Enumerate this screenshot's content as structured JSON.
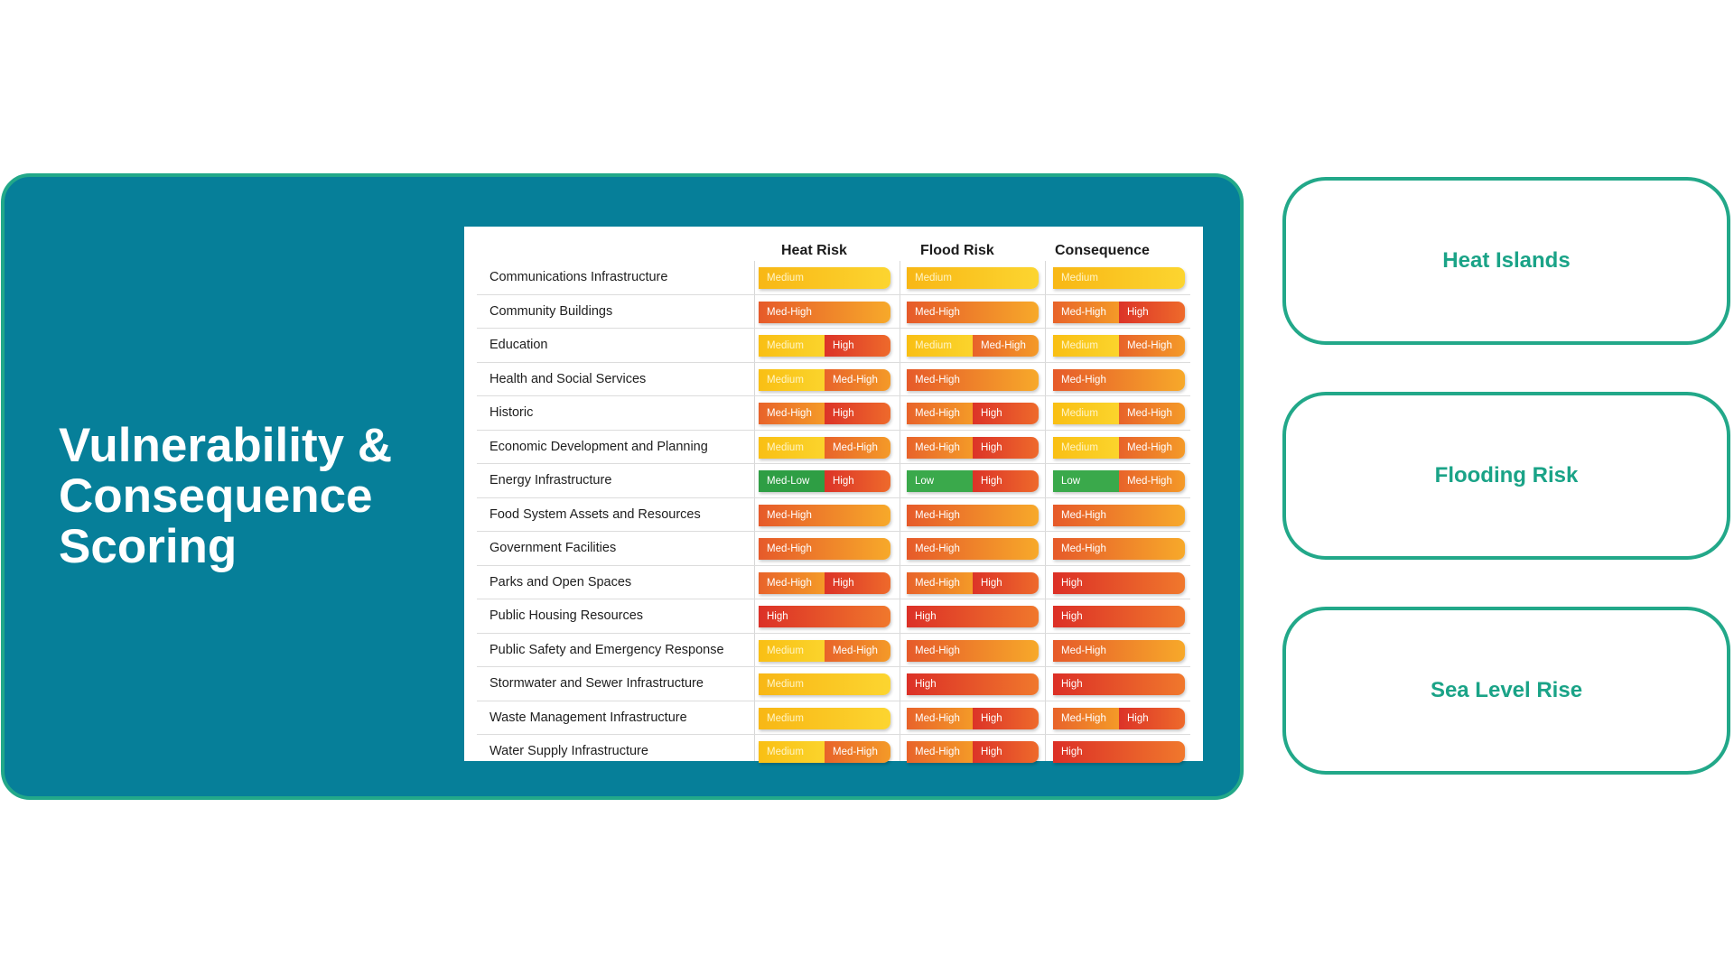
{
  "panel": {
    "title": "Vulnerability & Consequence Scoring"
  },
  "table": {
    "headers": [
      "Heat Risk",
      "Flood Risk",
      "Consequence"
    ],
    "rows": [
      {
        "label": "Communications Infrastructure",
        "cells": [
          [
            "Medium"
          ],
          [
            "Medium"
          ],
          [
            "Medium"
          ]
        ]
      },
      {
        "label": "Community Buildings",
        "cells": [
          [
            "Med-High"
          ],
          [
            "Med-High"
          ],
          [
            "Med-High",
            "High"
          ]
        ]
      },
      {
        "label": "Education",
        "cells": [
          [
            "Medium",
            "High"
          ],
          [
            "Medium",
            "Med-High"
          ],
          [
            "Medium",
            "Med-High"
          ]
        ]
      },
      {
        "label": "Health and Social Services",
        "cells": [
          [
            "Medium",
            "Med-High"
          ],
          [
            "Med-High"
          ],
          [
            "Med-High"
          ]
        ]
      },
      {
        "label": "Historic",
        "cells": [
          [
            "Med-High",
            "High"
          ],
          [
            "Med-High",
            "High"
          ],
          [
            "Medium",
            "Med-High"
          ]
        ]
      },
      {
        "label": "Economic Development and Planning",
        "cells": [
          [
            "Medium",
            "Med-High"
          ],
          [
            "Med-High",
            "High"
          ],
          [
            "Medium",
            "Med-High"
          ]
        ]
      },
      {
        "label": "Energy Infrastructure",
        "cells": [
          [
            "Med-Low",
            "High"
          ],
          [
            "Low",
            "High"
          ],
          [
            "Low",
            "Med-High"
          ]
        ]
      },
      {
        "label": "Food System Assets and Resources",
        "cells": [
          [
            "Med-High"
          ],
          [
            "Med-High"
          ],
          [
            "Med-High"
          ]
        ]
      },
      {
        "label": "Government Facilities",
        "cells": [
          [
            "Med-High"
          ],
          [
            "Med-High"
          ],
          [
            "Med-High"
          ]
        ]
      },
      {
        "label": "Parks and Open Spaces",
        "cells": [
          [
            "Med-High",
            "High"
          ],
          [
            "Med-High",
            "High"
          ],
          [
            "High"
          ]
        ]
      },
      {
        "label": "Public Housing Resources",
        "cells": [
          [
            "High"
          ],
          [
            "High"
          ],
          [
            "High"
          ]
        ]
      },
      {
        "label": "Public Safety and Emergency Response",
        "cells": [
          [
            "Medium",
            "Med-High"
          ],
          [
            "Med-High"
          ],
          [
            "Med-High"
          ]
        ]
      },
      {
        "label": "Stormwater and Sewer Infrastructure",
        "cells": [
          [
            "Medium"
          ],
          [
            "High"
          ],
          [
            "High"
          ]
        ]
      },
      {
        "label": "Waste Management Infrastructure",
        "cells": [
          [
            "Medium"
          ],
          [
            "Med-High",
            "High"
          ],
          [
            "Med-High",
            "High"
          ]
        ]
      },
      {
        "label": "Water Supply Infrastructure",
        "cells": [
          [
            "Medium",
            "Med-High"
          ],
          [
            "Med-High",
            "High"
          ],
          [
            "High"
          ]
        ]
      }
    ]
  },
  "side_cards": [
    {
      "label": "Heat Islands"
    },
    {
      "label": "Flooding Risk"
    },
    {
      "label": "Sea Level Rise"
    }
  ],
  "colors": {
    "panel_bg": "#067f99",
    "accent_green": "#22a889",
    "side_text": "#1aa387",
    "medium": "#f9bf14",
    "med_high": "#ef7f29",
    "high": "#dc3328",
    "low": "#3aa94b"
  }
}
